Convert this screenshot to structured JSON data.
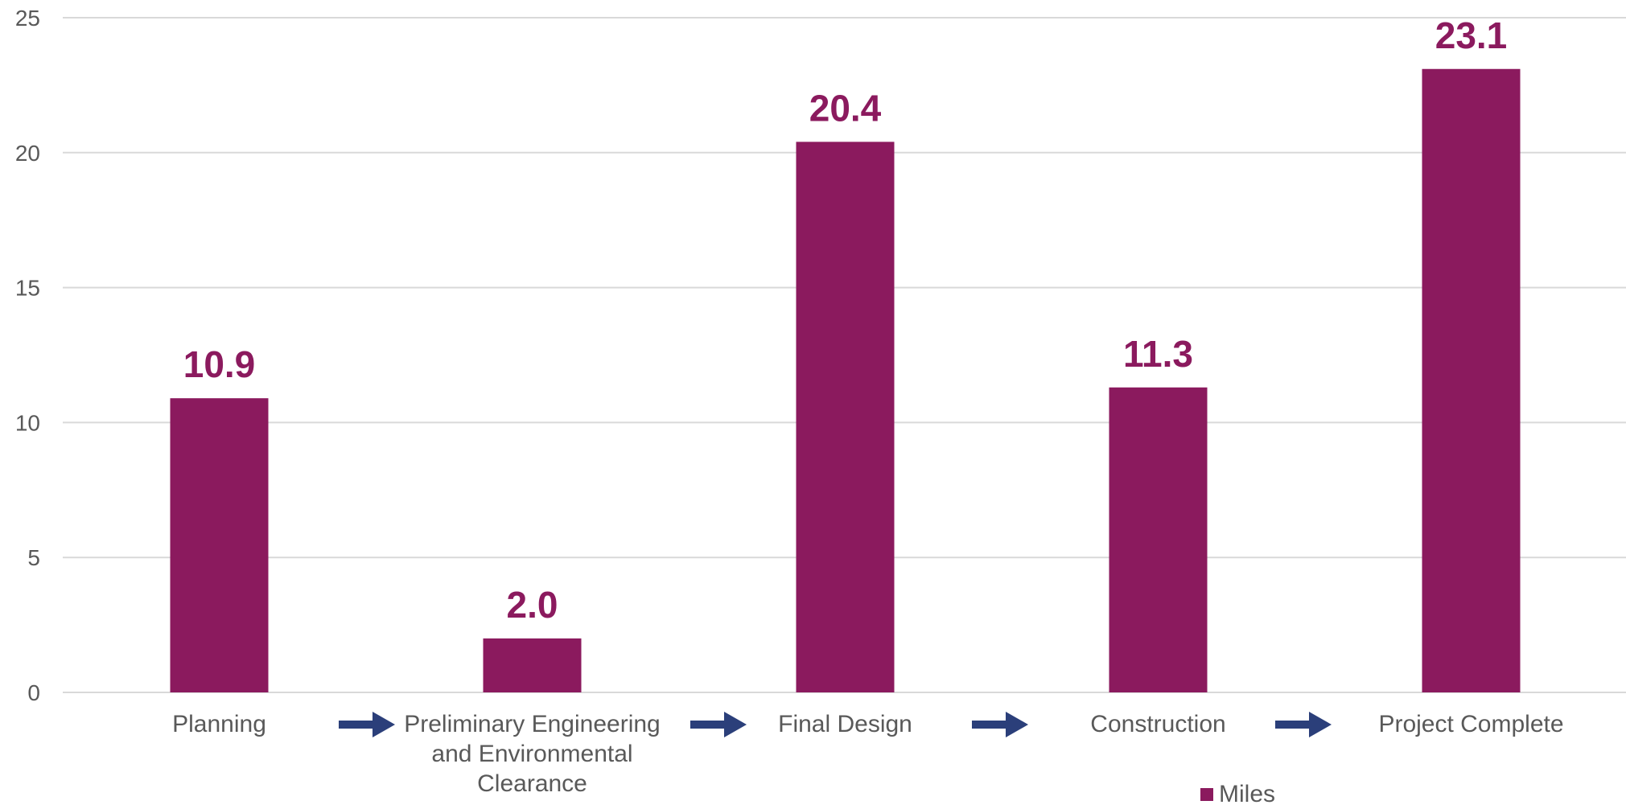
{
  "chart_data": {
    "type": "bar",
    "categories": [
      [
        "Planning"
      ],
      [
        "Preliminary Engineering",
        "and Environmental",
        "Clearance"
      ],
      [
        "Final Design"
      ],
      [
        "Construction"
      ],
      [
        "Project Complete"
      ]
    ],
    "series": [
      {
        "name": "Miles",
        "values": [
          10.9,
          2.0,
          20.4,
          11.3,
          23.1
        ],
        "value_labels": [
          "10.9",
          "2.0",
          "20.4",
          "11.3",
          "23.1"
        ],
        "color": "#8B1A5E"
      }
    ],
    "ylim": [
      0,
      25
    ],
    "yticks": [
      "0",
      "5",
      "10",
      "15",
      "20",
      "25"
    ],
    "grid": true,
    "legend_position": "bottom",
    "arrow_icon": "right-arrow-icon",
    "colors": {
      "bar": "#8B1A5E",
      "data_label": "#8B1A5E",
      "arrow": "#2B3F7A",
      "gridline": "#D9D9D9",
      "tick_text": "#595959"
    }
  }
}
